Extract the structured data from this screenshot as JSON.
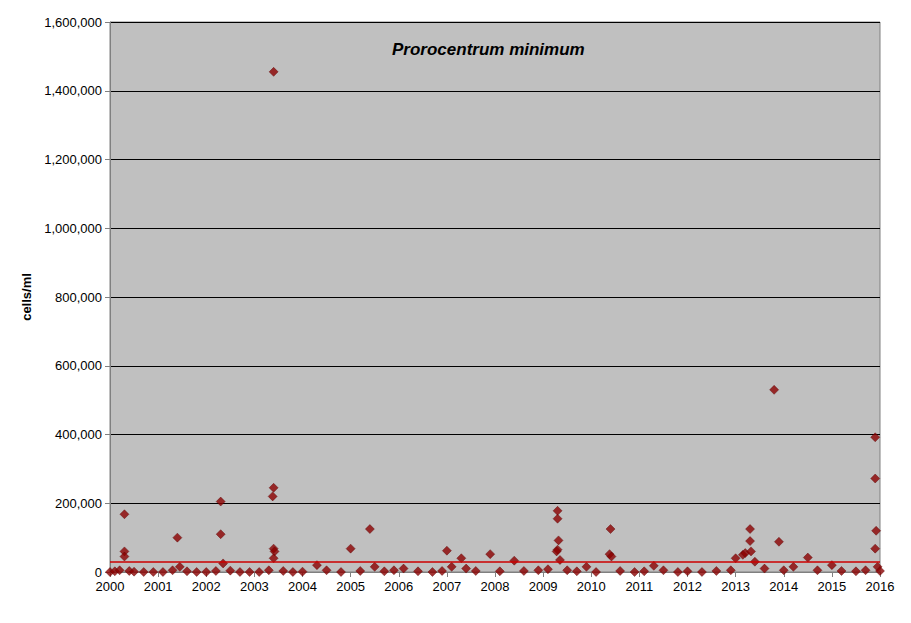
{
  "chart_data": {
    "type": "scatter",
    "title": "Prorocentrum minimum",
    "y_label": "cells/ml",
    "marker": "diamond",
    "color": "#8b0000",
    "grid": true,
    "reference_line": 30000,
    "x": [
      2000,
      2000.1,
      2000.2,
      2000.3,
      2000.3,
      2000.3,
      2000.4,
      2000.5,
      2000.7,
      2000.9,
      2001.1,
      2001.3,
      2001.4,
      2001.45,
      2001.6,
      2001.8,
      2002,
      2002.2,
      2002.3,
      2002.3,
      2002.35,
      2002.5,
      2002.7,
      2002.9,
      2003.1,
      2003.3,
      2003.4,
      2003.4,
      2003.38,
      2003.4,
      2003.42,
      2003.4,
      2003.6,
      2003.8,
      2004,
      2004.3,
      2004.5,
      2004.8,
      2005,
      2005.2,
      2005.4,
      2005.5,
      2005.7,
      2005.9,
      2006.1,
      2006.4,
      2006.7,
      2006.9,
      2007,
      2007.1,
      2007.3,
      2007.4,
      2007.6,
      2007.9,
      2008.1,
      2008.4,
      2008.6,
      2008.9,
      2009.1,
      2009.3,
      2009.3,
      2009.32,
      2009.3,
      2009.28,
      2009.35,
      2009.5,
      2009.7,
      2009.9,
      2010.1,
      2010.4,
      2010.38,
      2010.42,
      2010.6,
      2010.9,
      2011.1,
      2011.3,
      2011.5,
      2011.8,
      2012,
      2012.3,
      2012.6,
      2012.9,
      2013,
      2013.15,
      2013.2,
      2013.3,
      2013.3,
      2013.32,
      2013.4,
      2013.6,
      2013.8,
      2013.9,
      2014,
      2014.2,
      2014.5,
      2014.7,
      2015,
      2015.2,
      2015.5,
      2015.7,
      2015.9,
      2015.9,
      2015.92,
      2015.9,
      2015.95,
      2016
    ],
    "values": [
      0,
      2000,
      5000,
      168000,
      60000,
      45000,
      3000,
      1000,
      0,
      0,
      0,
      5000,
      100000,
      15000,
      2000,
      0,
      0,
      3000,
      205000,
      110000,
      25000,
      4000,
      0,
      0,
      0,
      5000,
      1455000,
      245000,
      220000,
      68000,
      60000,
      40000,
      3000,
      0,
      1000,
      20000,
      5000,
      0,
      68000,
      3000,
      125000,
      15000,
      2000,
      5000,
      10000,
      2000,
      0,
      3000,
      62000,
      15000,
      40000,
      10000,
      3000,
      52000,
      2000,
      33000,
      3000,
      5000,
      8000,
      178000,
      155000,
      92000,
      65000,
      60000,
      35000,
      5000,
      2000,
      15000,
      0,
      125000,
      52000,
      45000,
      3000,
      0,
      2000,
      18000,
      5000,
      0,
      2000,
      0,
      3000,
      5000,
      40000,
      50000,
      55000,
      125000,
      90000,
      60000,
      30000,
      10000,
      530000,
      88000,
      5000,
      15000,
      42000,
      5000,
      20000,
      3000,
      2000,
      5000,
      392000,
      272000,
      120000,
      68000,
      15000,
      3000
    ],
    "xlim": [
      2000,
      2016
    ],
    "xticks": [
      2000,
      2001,
      2002,
      2003,
      2004,
      2005,
      2006,
      2007,
      2008,
      2009,
      2010,
      2011,
      2012,
      2013,
      2014,
      2015,
      2016
    ],
    "ylim": [
      0,
      1600000
    ],
    "yticks": [
      0,
      {
        "value": 200000,
        "label": "200,000"
      },
      {
        "value": 400000,
        "label": "400,000"
      },
      {
        "value": 600000,
        "label": "600,000"
      },
      {
        "value": 800000,
        "label": "800,000"
      },
      {
        "value": 1000000,
        "label": "1,000,000"
      },
      {
        "value": 1200000,
        "label": "1,200,000"
      },
      {
        "value": 1400000,
        "label": "1,400,000"
      },
      {
        "value": 1600000,
        "label": "1,600,000"
      }
    ]
  }
}
